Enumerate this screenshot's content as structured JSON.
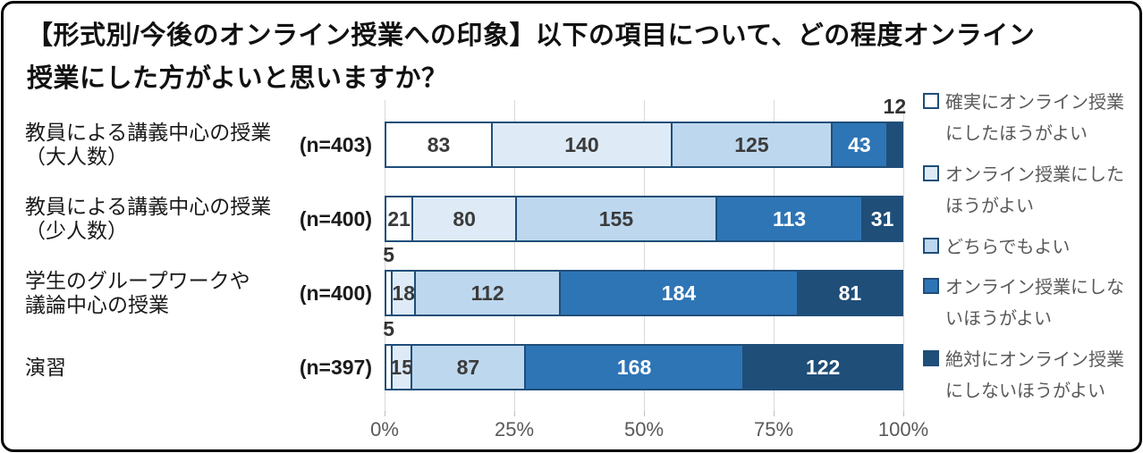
{
  "title": {
    "line1": "【形式別/今後のオンライン授業への印象】以下の項目について、どの程度オンライン",
    "line2": "授業にした方がよいと思いますか？"
  },
  "chart_data": {
    "type": "bar",
    "stacked": true,
    "orientation": "horizontal",
    "title": "【形式別/今後のオンライン授業への印象】以下の項目について、どの程度オンライン授業にした方がよいと思いますか？",
    "categories": [
      "教員による講義中心の授業\n（大人数）",
      "教員による講義中心の授業\n（少人数）",
      "学生のグループワークや\n議論中心の授業",
      "演習"
    ],
    "n_labels": [
      "(n=403)",
      "(n=400)",
      "(n=400)",
      "(n=397)"
    ],
    "totals": [
      403,
      400,
      400,
      397
    ],
    "series": [
      {
        "name": "確実にオンライン授業にしたほうがよい",
        "color": "#FFFFFF",
        "values": [
          83,
          21,
          5,
          5
        ]
      },
      {
        "name": "オンライン授業にしたほうがよい",
        "color": "#DEEBF7",
        "values": [
          140,
          80,
          18,
          15
        ]
      },
      {
        "name": "どちらでもよい",
        "color": "#BDD7EE",
        "values": [
          125,
          155,
          112,
          87
        ]
      },
      {
        "name": "オンライン授業にしないほうがよい",
        "color": "#2E75B6",
        "values": [
          43,
          113,
          184,
          168
        ]
      },
      {
        "name": "絶対にオンライン授業にしないほうがよい",
        "color": "#1F4E79",
        "values": [
          12,
          31,
          81,
          122
        ]
      }
    ],
    "value_label_colors": [
      "#3b3b3b",
      "#3b3b3b",
      "#3b3b3b",
      "#FFFFFF",
      "#FFFFFF"
    ],
    "x_axis": {
      "ticks": [
        "0%",
        "25%",
        "50%",
        "75%",
        "100%"
      ],
      "range": [
        0,
        100
      ]
    },
    "gridlines": true,
    "legend_position": "right",
    "border_color": "#1F4E79"
  }
}
